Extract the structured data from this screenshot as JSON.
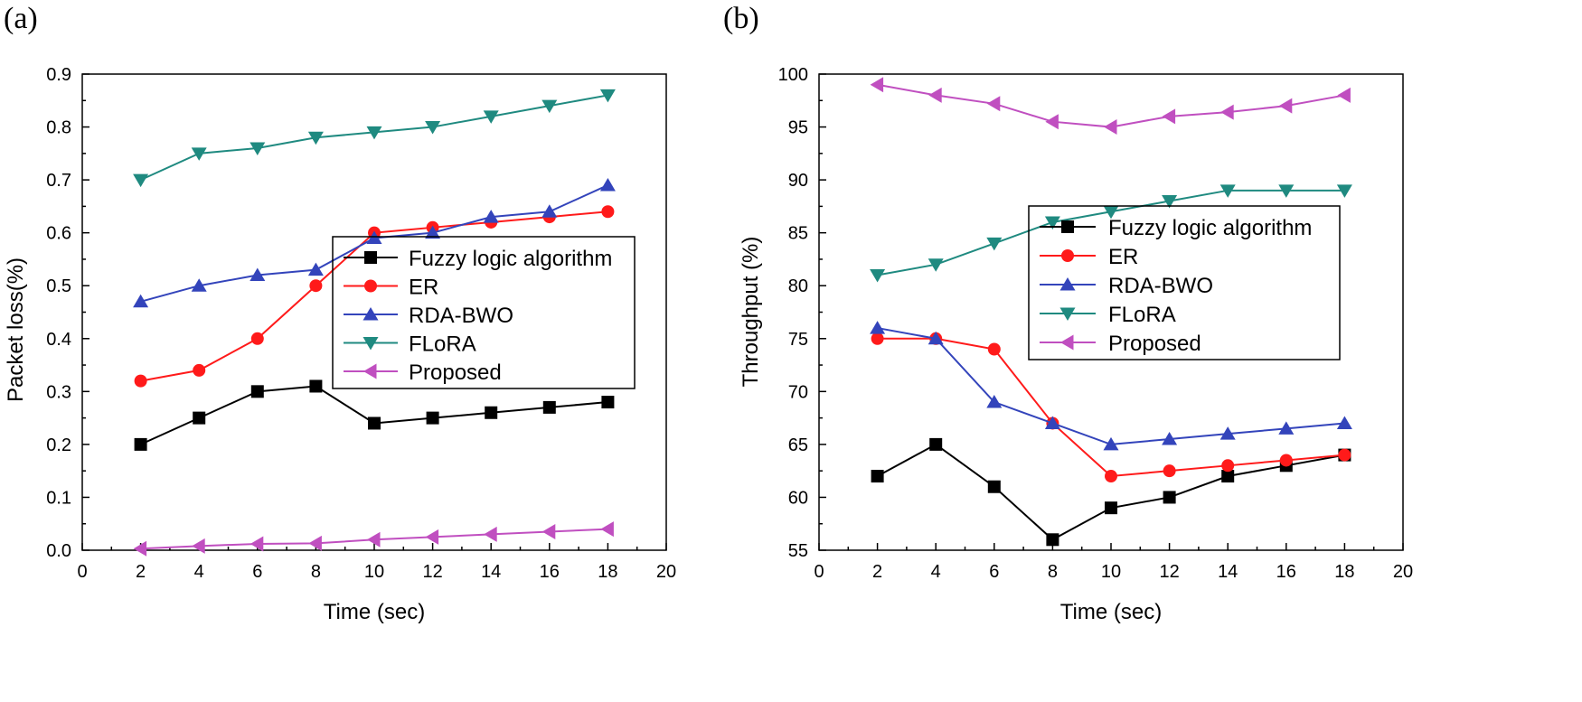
{
  "chart_data": [
    {
      "type": "line",
      "panel_label": "(a)",
      "xlabel": "Time (sec)",
      "ylabel": "Packet loss(%)",
      "xlim": [
        0,
        20
      ],
      "ylim": [
        0,
        0.9
      ],
      "xticks": [
        0,
        2,
        4,
        6,
        8,
        10,
        12,
        14,
        16,
        18,
        20
      ],
      "yticks": [
        0,
        0.1,
        0.2,
        0.3,
        0.4,
        0.5,
        0.6,
        0.7,
        0.8,
        0.9
      ],
      "ytick_labels": [
        "0.0",
        "0.1",
        "0.2",
        "0.3",
        "0.4",
        "0.5",
        "0.6",
        "0.7",
        "0.8",
        "0.9"
      ],
      "legend_position": "center-right",
      "x": [
        2,
        4,
        6,
        8,
        10,
        12,
        14,
        16,
        18
      ],
      "series": [
        {
          "name": "Fuzzy logic algorithm",
          "color": "#000000",
          "marker": "square",
          "values": [
            0.2,
            0.25,
            0.3,
            0.31,
            0.24,
            0.25,
            0.26,
            0.27,
            0.28
          ]
        },
        {
          "name": "ER",
          "color": "#ff1a1a",
          "marker": "circle",
          "values": [
            0.32,
            0.34,
            0.4,
            0.5,
            0.6,
            0.61,
            0.62,
            0.63,
            0.64
          ]
        },
        {
          "name": "RDA-BWO",
          "color": "#3344bb",
          "marker": "triangle-up",
          "values": [
            0.47,
            0.5,
            0.52,
            0.53,
            0.59,
            0.6,
            0.63,
            0.64,
            0.69
          ]
        },
        {
          "name": "FLoRA",
          "color": "#1f8a80",
          "marker": "triangle-down",
          "values": [
            0.7,
            0.75,
            0.76,
            0.78,
            0.79,
            0.8,
            0.82,
            0.84,
            0.86
          ]
        },
        {
          "name": "Proposed",
          "color": "#c04fc0",
          "marker": "triangle-left",
          "values": [
            0.003,
            0.008,
            0.012,
            0.013,
            0.02,
            0.025,
            0.03,
            0.035,
            0.04
          ]
        }
      ]
    },
    {
      "type": "line",
      "panel_label": "(b)",
      "xlabel": "Time (sec)",
      "ylabel": "Throughput (%)",
      "xlim": [
        0,
        20
      ],
      "ylim": [
        55,
        100
      ],
      "xticks": [
        0,
        2,
        4,
        6,
        8,
        10,
        12,
        14,
        16,
        18,
        20
      ],
      "yticks": [
        55,
        60,
        65,
        70,
        75,
        80,
        85,
        90,
        95,
        100
      ],
      "ytick_labels": [
        "55",
        "60",
        "65",
        "70",
        "75",
        "80",
        "85",
        "90",
        "95",
        "100"
      ],
      "legend_position": "center-right",
      "x": [
        2,
        4,
        6,
        8,
        10,
        12,
        14,
        16,
        18
      ],
      "series": [
        {
          "name": "Fuzzy logic algorithm",
          "color": "#000000",
          "marker": "square",
          "values": [
            62,
            65,
            61,
            56,
            59,
            60,
            62,
            63,
            64
          ]
        },
        {
          "name": "ER",
          "color": "#ff1a1a",
          "marker": "circle",
          "values": [
            75,
            75,
            74,
            67,
            62,
            62.5,
            63,
            63.5,
            64
          ]
        },
        {
          "name": "RDA-BWO",
          "color": "#3344bb",
          "marker": "triangle-up",
          "values": [
            76,
            75,
            69,
            67,
            65,
            65.5,
            66,
            66.5,
            67
          ]
        },
        {
          "name": "FLoRA",
          "color": "#1f8a80",
          "marker": "triangle-down",
          "values": [
            81,
            82,
            84,
            86,
            87,
            88,
            89,
            89,
            89
          ]
        },
        {
          "name": "Proposed",
          "color": "#c04fc0",
          "marker": "triangle-left",
          "values": [
            99,
            98,
            97.2,
            95.5,
            95,
            96,
            96.4,
            97,
            98
          ]
        }
      ]
    }
  ]
}
